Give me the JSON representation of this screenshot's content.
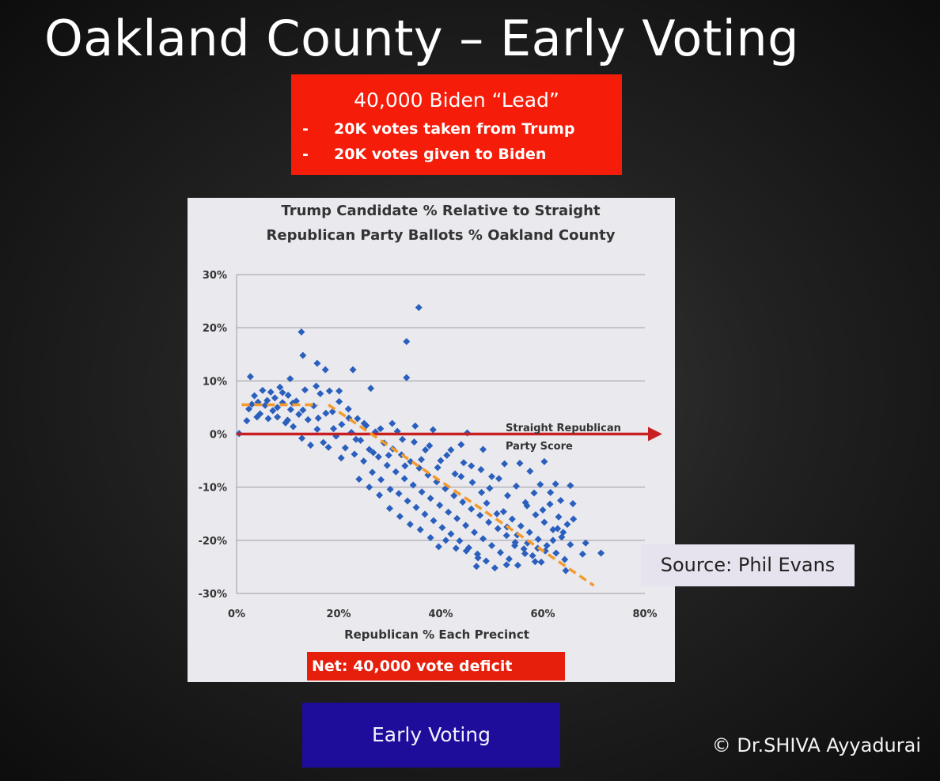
{
  "slide": {
    "title": "Oakland County – Early Voting",
    "copyright": "© Dr.SHIVA Ayyadurai",
    "button_label": "Early Voting"
  },
  "callout": {
    "headline": "40,000  Biden “Lead”",
    "bullets": [
      {
        "dash": "-",
        "text": "20K votes taken from Trump"
      },
      {
        "dash": "-",
        "text": "20K votes given to Biden"
      }
    ]
  },
  "net_label": "Net:  40,000 vote deficit",
  "source_label": "Source: Phil Evans",
  "colors": {
    "callout": "#f51d0a",
    "points": "#2b5fbd",
    "reference_arrow": "#c82020",
    "trend": "#f39a2b",
    "button": "#1e0d9a"
  },
  "chart_data": {
    "type": "scatter",
    "title": [
      "Trump Candidate % Relative to Straight",
      "Republican Party Ballots % Oakland County"
    ],
    "xlabel": "Republican % Each Precinct",
    "ylabel": "",
    "xlim": [
      0,
      80
    ],
    "ylim": [
      -30,
      30
    ],
    "x_ticks": [
      "0%",
      "20%",
      "40%",
      "60%",
      "80%"
    ],
    "y_ticks": [
      "30%",
      "20%",
      "10%",
      "0%",
      "-10%",
      "-20%",
      "-30%"
    ],
    "grid": "horizontal",
    "annotation": [
      "Straight Republican",
      "Party Score"
    ],
    "reference_line": {
      "y": 0,
      "style": "arrow"
    },
    "trend_segments": [
      {
        "x": [
          1,
          16
        ],
        "y": [
          5.5,
          5.5
        ]
      },
      {
        "x": [
          18,
          70
        ],
        "y": [
          5.5,
          -28.5
        ]
      }
    ],
    "series_points": [
      [
        2.7,
        10.8
      ],
      [
        12.7,
        19.2
      ],
      [
        13.0,
        14.8
      ],
      [
        15.8,
        13.3
      ],
      [
        17.4,
        12.1
      ],
      [
        22.8,
        12.1
      ],
      [
        33.3,
        17.4
      ],
      [
        33.3,
        10.6
      ],
      [
        35.7,
        23.8
      ],
      [
        15.6,
        9.0
      ],
      [
        10.5,
        10.4
      ],
      [
        20.1,
        8.1
      ],
      [
        26.3,
        8.6
      ],
      [
        45.2,
        0.2
      ],
      [
        48.3,
        -2.9
      ],
      [
        52.5,
        -5.6
      ],
      [
        60.3,
        -5.2
      ],
      [
        39.6,
        -21.2
      ],
      [
        62.5,
        -9.4
      ],
      [
        65.4,
        -9.7
      ],
      [
        65.9,
        -13.1
      ],
      [
        67.8,
        -22.6
      ],
      [
        68.4,
        -20.5
      ],
      [
        71.4,
        -22.4
      ],
      [
        62.9,
        -17.8
      ],
      [
        64.5,
        -25.7
      ],
      [
        52.9,
        -24.6
      ],
      [
        47.0,
        -24.9
      ],
      [
        47.3,
        -23.3
      ],
      [
        0.5,
        0.1
      ],
      [
        2.0,
        2.5
      ],
      [
        2.4,
        4.7
      ],
      [
        3.5,
        7.2
      ],
      [
        4.2,
        6.0
      ],
      [
        4.6,
        3.8
      ],
      [
        5.1,
        8.2
      ],
      [
        5.6,
        5.4
      ],
      [
        6.2,
        2.9
      ],
      [
        6.7,
        7.9
      ],
      [
        7.1,
        4.4
      ],
      [
        7.5,
        6.8
      ],
      [
        8.0,
        3.2
      ],
      [
        8.5,
        8.8
      ],
      [
        9.0,
        5.9
      ],
      [
        9.6,
        2.1
      ],
      [
        10.1,
        7.3
      ],
      [
        10.6,
        4.6
      ],
      [
        11.1,
        1.4
      ],
      [
        11.7,
        6.2
      ],
      [
        12.2,
        3.7
      ],
      [
        12.8,
        -0.8
      ],
      [
        13.4,
        8.3
      ],
      [
        14.0,
        2.7
      ],
      [
        14.5,
        -2.1
      ],
      [
        15.1,
        5.3
      ],
      [
        15.8,
        0.9
      ],
      [
        16.4,
        7.6
      ],
      [
        17.0,
        -1.6
      ],
      [
        17.5,
        3.9
      ],
      [
        18.2,
        8.1
      ],
      [
        18.8,
        4.2
      ],
      [
        19.5,
        -0.4
      ],
      [
        20.1,
        6.1
      ],
      [
        20.6,
        1.8
      ],
      [
        21.3,
        -2.6
      ],
      [
        21.9,
        4.7
      ],
      [
        22.5,
        0.3
      ],
      [
        23.1,
        -3.8
      ],
      [
        23.7,
        2.9
      ],
      [
        24.3,
        -1.2
      ],
      [
        24.9,
        -5.1
      ],
      [
        25.4,
        1.6
      ],
      [
        26.0,
        -2.9
      ],
      [
        26.6,
        -7.2
      ],
      [
        27.2,
        0.4
      ],
      [
        27.8,
        -4.3
      ],
      [
        28.3,
        -8.6
      ],
      [
        28.9,
        -1.7
      ],
      [
        29.5,
        -5.9
      ],
      [
        30.1,
        -10.4
      ],
      [
        30.6,
        -2.8
      ],
      [
        31.2,
        -7.1
      ],
      [
        31.8,
        -11.2
      ],
      [
        32.3,
        -3.9
      ],
      [
        32.9,
        -8.4
      ],
      [
        33.5,
        -12.6
      ],
      [
        34.1,
        -5.2
      ],
      [
        34.6,
        -9.6
      ],
      [
        35.2,
        -13.8
      ],
      [
        35.8,
        -6.4
      ],
      [
        36.3,
        -10.9
      ],
      [
        36.9,
        -15.1
      ],
      [
        37.5,
        -7.7
      ],
      [
        38.0,
        -12.1
      ],
      [
        38.6,
        -16.3
      ],
      [
        39.2,
        -9.0
      ],
      [
        39.8,
        -13.4
      ],
      [
        40.3,
        -17.6
      ],
      [
        40.9,
        -10.3
      ],
      [
        41.5,
        -14.7
      ],
      [
        42.0,
        -18.8
      ],
      [
        42.6,
        -11.6
      ],
      [
        43.2,
        -15.9
      ],
      [
        43.7,
        -20.1
      ],
      [
        44.3,
        -12.8
      ],
      [
        44.9,
        -17.2
      ],
      [
        45.5,
        -21.4
      ],
      [
        46.0,
        -14.1
      ],
      [
        46.6,
        -18.5
      ],
      [
        47.2,
        -22.6
      ],
      [
        47.7,
        -15.3
      ],
      [
        48.3,
        -19.7
      ],
      [
        48.9,
        -23.9
      ],
      [
        49.4,
        -16.6
      ],
      [
        50.0,
        -21.0
      ],
      [
        50.6,
        -25.2
      ],
      [
        51.2,
        -17.8
      ],
      [
        51.7,
        -22.3
      ],
      [
        52.3,
        -14.6
      ],
      [
        52.9,
        -19.1
      ],
      [
        53.4,
        -23.5
      ],
      [
        54.0,
        -16.0
      ],
      [
        54.6,
        -20.4
      ],
      [
        55.1,
        -24.7
      ],
      [
        55.7,
        -17.3
      ],
      [
        56.3,
        -21.6
      ],
      [
        56.9,
        -13.5
      ],
      [
        57.4,
        -18.5
      ],
      [
        58.0,
        -22.9
      ],
      [
        58.6,
        -15.2
      ],
      [
        59.1,
        -19.8
      ],
      [
        59.7,
        -24.1
      ],
      [
        60.3,
        -16.6
      ],
      [
        60.8,
        -21.0
      ],
      [
        61.4,
        -13.2
      ],
      [
        62.0,
        -18.0
      ],
      [
        62.6,
        -22.4
      ],
      [
        63.1,
        -15.6
      ],
      [
        63.7,
        -19.4
      ],
      [
        64.3,
        -23.6
      ],
      [
        64.8,
        -17.0
      ],
      [
        65.4,
        -20.8
      ],
      [
        22.0,
        3.0
      ],
      [
        23.4,
        -1.0
      ],
      [
        25.0,
        2.0
      ],
      [
        26.8,
        -3.5
      ],
      [
        28.2,
        1.0
      ],
      [
        29.8,
        -4.0
      ],
      [
        31.5,
        0.5
      ],
      [
        33.0,
        -6.0
      ],
      [
        34.8,
        -1.5
      ],
      [
        36.2,
        -4.8
      ],
      [
        37.8,
        -2.2
      ],
      [
        39.4,
        -6.3
      ],
      [
        41.2,
        -4.0
      ],
      [
        42.8,
        -7.5
      ],
      [
        44.5,
        -5.4
      ],
      [
        46.2,
        -9.1
      ],
      [
        47.9,
        -6.7
      ],
      [
        49.6,
        -10.2
      ],
      [
        51.4,
        -8.4
      ],
      [
        53.1,
        -11.6
      ],
      [
        54.8,
        -9.8
      ],
      [
        56.6,
        -12.9
      ],
      [
        58.3,
        -11.1
      ],
      [
        60.0,
        -14.3
      ],
      [
        30.0,
        -14.0
      ],
      [
        32.0,
        -15.5
      ],
      [
        34.0,
        -17.0
      ],
      [
        36.0,
        -18.0
      ],
      [
        38.0,
        -19.5
      ],
      [
        24.0,
        -8.5
      ],
      [
        26.0,
        -10.0
      ],
      [
        28.0,
        -11.5
      ],
      [
        41.0,
        -20.0
      ],
      [
        43.0,
        -21.5
      ],
      [
        45.0,
        -22.0
      ],
      [
        49.0,
        -13.0
      ],
      [
        51.0,
        -15.0
      ],
      [
        53.0,
        -17.5
      ],
      [
        55.0,
        -19.0
      ],
      [
        57.0,
        -20.5
      ],
      [
        59.0,
        -21.5
      ],
      [
        40.0,
        -5.0
      ],
      [
        42.0,
        -3.0
      ],
      [
        44.0,
        -8.0
      ],
      [
        46.0,
        -6.0
      ],
      [
        48.0,
        -11.0
      ],
      [
        50.0,
        -8.0
      ],
      [
        18.0,
        -2.5
      ],
      [
        19.0,
        1.0
      ],
      [
        20.5,
        -4.5
      ],
      [
        16.0,
        3.0
      ],
      [
        13.0,
        4.5
      ],
      [
        11.0,
        5.8
      ],
      [
        3.0,
        5.6
      ],
      [
        4.0,
        3.2
      ],
      [
        6.0,
        6.3
      ],
      [
        8.0,
        5.0
      ],
      [
        9.0,
        7.8
      ],
      [
        10.0,
        2.6
      ],
      [
        30.5,
        2.0
      ],
      [
        32.5,
        -1.0
      ],
      [
        35.0,
        1.5
      ],
      [
        37.0,
        -3.0
      ],
      [
        38.5,
        0.8
      ],
      [
        44.0,
        -2.0
      ],
      [
        55.5,
        -5.5
      ],
      [
        57.5,
        -7.0
      ],
      [
        59.5,
        -9.5
      ],
      [
        61.5,
        -11.0
      ],
      [
        63.5,
        -12.5
      ],
      [
        66.0,
        -16.0
      ],
      [
        64.0,
        -18.5
      ],
      [
        62.0,
        -20.0
      ],
      [
        60.5,
        -22.0
      ],
      [
        58.5,
        -24.0
      ],
      [
        56.5,
        -22.5
      ],
      [
        54.5,
        -21.0
      ]
    ]
  }
}
